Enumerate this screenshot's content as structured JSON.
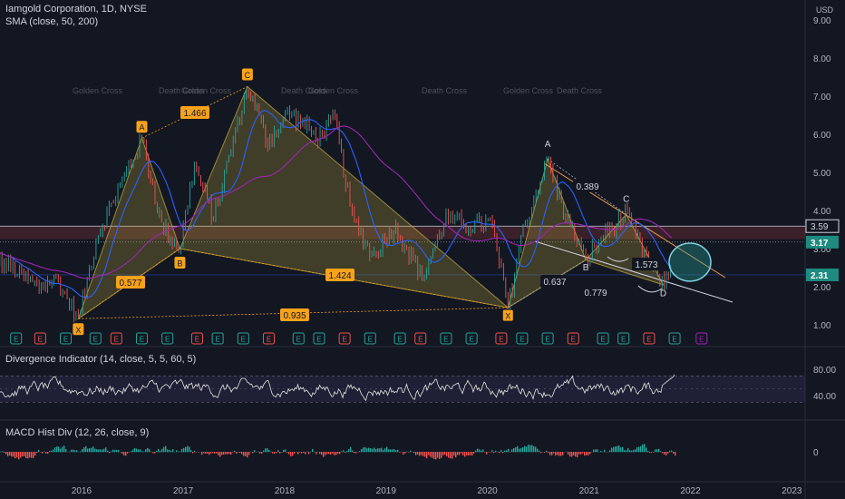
{
  "header": {
    "symbol_line": "Iamgold Corporation, 1D, NYSE",
    "sma_line": "SMA (close, 50, 200)",
    "currency": "USD"
  },
  "panes": {
    "divergence_title": "Divergence Indicator (14, close, 5, 5, 60, 5)",
    "macd_title": "MACD Hist Div (12, 26, close, 9)"
  },
  "colors": {
    "background": "#131722",
    "candle_up": "#26a69a",
    "candle_down": "#ef5350",
    "pattern_fill": "#b7a33c",
    "pattern_label": "#f7a21b",
    "sma50": "#2962ff",
    "sma200": "#9c27b0"
  },
  "chart_data": [
    {
      "type": "line",
      "name": "price",
      "y_axis_ticks": [
        "1.00",
        "2.00",
        "3.00",
        "4.00",
        "5.00",
        "6.00",
        "7.00",
        "8.00",
        "9.00"
      ],
      "x_axis_ticks": [
        "2016",
        "2017",
        "2018",
        "2019",
        "2020",
        "2021",
        "2022",
        "2023"
      ],
      "price_badges": [
        {
          "value": "3.59",
          "style": "outline"
        },
        {
          "value": "3.17",
          "style": "teal"
        },
        {
          "value": "2.31",
          "style": "teal"
        }
      ],
      "harmonic_points": [
        {
          "label": "X",
          "date": "2015-12-20",
          "price": 1.16
        },
        {
          "label": "A",
          "date": "2016-08-05",
          "price": 5.9
        },
        {
          "label": "B",
          "date": "2016-12-20",
          "price": 3.0
        },
        {
          "label": "C",
          "date": "2017-08-20",
          "price": 7.25
        },
        {
          "label": "X",
          "date": "2020-03-15",
          "price": 1.45
        },
        {
          "label": "A",
          "date": "2020-08-05",
          "price": 5.35
        },
        {
          "label": "B",
          "date": "2020-12-20",
          "price": 2.7
        },
        {
          "label": "C",
          "date": "2021-05-15",
          "price": 3.9
        },
        {
          "label": "D",
          "date": "2021-09-25",
          "price": 2.05
        }
      ],
      "ratio_labels": [
        "1.466",
        "0.577",
        "1.424",
        "0.935",
        "0.389",
        "1.573",
        "0.637",
        "0.779"
      ],
      "sma_cross_labels": [
        "Golden Cross",
        "Death Cross",
        "Golden Cross",
        "Death Cross",
        "Golden Cross",
        "Death Cross",
        "Golden Cross",
        "Death Cross"
      ],
      "earnings_marker": "E",
      "current_price": 3.17
    },
    {
      "type": "line",
      "name": "Divergence Indicator",
      "y_axis_ticks": [
        "40.00",
        "80.00"
      ],
      "last_value": 72
    },
    {
      "type": "bar",
      "name": "MACD Hist Div",
      "y_axis_ticks": [
        "0"
      ]
    }
  ]
}
